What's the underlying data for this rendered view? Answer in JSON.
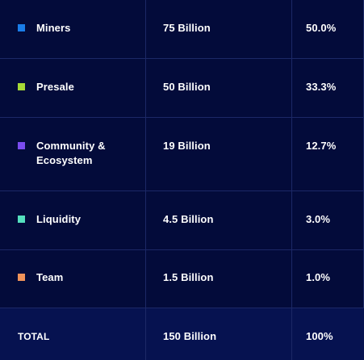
{
  "rows": [
    {
      "name": "Miners",
      "amount": "75 Billion",
      "percent": "50.0%",
      "color": "#1a7de8"
    },
    {
      "name": "Presale",
      "amount": "50 Billion",
      "percent": "33.3%",
      "color": "#a6d936"
    },
    {
      "name": "Community & Ecosystem",
      "amount": "19 Billion",
      "percent": "12.7%",
      "color": "#7a4cf0"
    },
    {
      "name": "Liquidity",
      "amount": "4.5 Billion",
      "percent": "3.0%",
      "color": "#55e0be"
    },
    {
      "name": "Team",
      "amount": "1.5 Billion",
      "percent": "1.0%",
      "color": "#f0935a"
    }
  ],
  "total": {
    "label": "TOTAL",
    "amount": "150 Billion",
    "percent": "100%"
  }
}
